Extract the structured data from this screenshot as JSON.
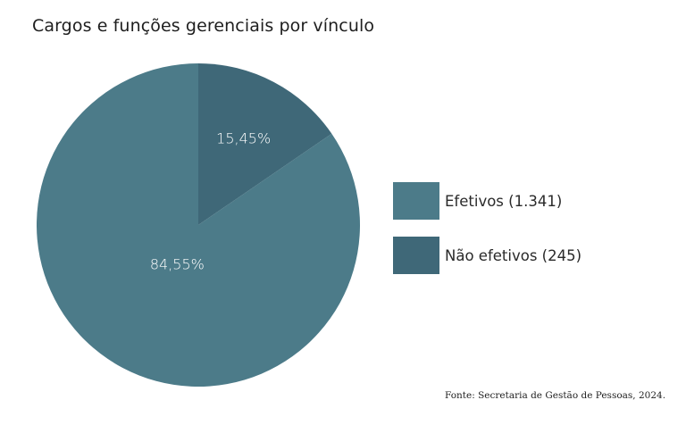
{
  "chart_data": {
    "type": "pie",
    "title": "Cargos e funções gerenciais por vínculo",
    "slices": [
      {
        "name": "Não efetivos (245)",
        "value": 245,
        "percent_label": "15,45%",
        "color": "#3f6878"
      },
      {
        "name": "Efetivos (1.341)",
        "value": 1341,
        "percent_label": "84,55%",
        "color": "#4c7b89"
      }
    ],
    "legend": [
      {
        "label": "Efetivos (1.341)",
        "color": "#4c7b89"
      },
      {
        "label": "Não efetivos (245)",
        "color": "#3f6878"
      }
    ],
    "legend_position": "right",
    "source": "Fonte:  Secretaria de Gestão de Pessoas, 2024."
  }
}
